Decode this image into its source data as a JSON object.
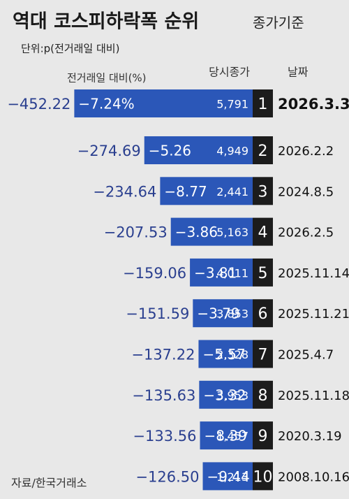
{
  "chart_data": {
    "type": "bar",
    "title": "역대 코스피하락폭 순위",
    "subtitle": "종가기준",
    "unit_note": "단위:p(전거래일 대비)",
    "source": "자료/한국거래소",
    "date_header": "날짜",
    "categories": [
      "2026.3.3",
      "2026.2.2",
      "2024.8.5",
      "2026.2.5",
      "2025.11.14",
      "2025.11.21",
      "2025.4.7",
      "2025.11.18",
      "2020.3.19",
      "2008.10.16"
    ],
    "ranks": [
      1,
      2,
      3,
      4,
      5,
      6,
      7,
      8,
      9,
      10
    ],
    "values": [
      -452.22,
      -274.69,
      -234.64,
      -207.53,
      -159.06,
      -151.59,
      -137.22,
      -135.63,
      -133.56,
      -126.5
    ],
    "value_labels": [
      "−452.22",
      "−274.69",
      "−234.64",
      "−207.53",
      "−159.06",
      "−151.59",
      "−137.22",
      "−135.63",
      "−133.56",
      "−126.50"
    ],
    "color": "#2b57b8",
    "xlim": [
      0,
      -460
    ],
    "series": [
      {
        "name": "전거래일 대비(%)",
        "values": [
          -7.24,
          -5.26,
          -8.77,
          -3.86,
          -3.81,
          -3.79,
          -5.57,
          -3.32,
          -8.39,
          -9.44
        ],
        "value_labels": [
          "−7.24%",
          "−5.26",
          "−8.77",
          "−3.86",
          "−3.81",
          "−3.79",
          "−5.57",
          "−3.32",
          "−8.39",
          "−9.44"
        ]
      },
      {
        "name": "당시종가",
        "values": [
          5791,
          4949,
          2441,
          5163,
          4011,
          3853,
          2328,
          3953,
          1457,
          1213
        ],
        "value_labels": [
          "5,791",
          "4,949",
          "2,441",
          "5,163",
          "4,011",
          "3,853",
          "2,328",
          "3,953",
          "1,457",
          "1,213"
        ]
      }
    ]
  }
}
